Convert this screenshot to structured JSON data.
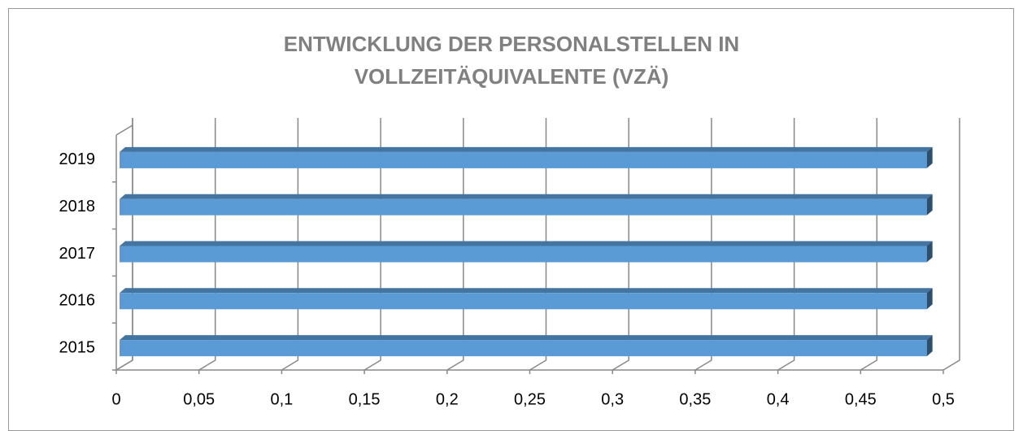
{
  "chart_data": {
    "type": "bar3d",
    "orientation": "horizontal",
    "title": "ENTWICKLUNG DER PERSONALSTELLEN IN VOLLZEITÄQUIVALENTE (VZÄ)",
    "categories": [
      "2015",
      "2016",
      "2017",
      "2018",
      "2019"
    ],
    "values": [
      0.49,
      0.49,
      0.49,
      0.49,
      0.49
    ],
    "color": "#5b9bd5",
    "xlim": [
      0,
      0.5
    ],
    "xticks": [
      0,
      {
        "value": 0.05,
        "label": "0,05"
      },
      {
        "value": 0.1,
        "label": "0,1"
      },
      {
        "value": 0.15,
        "label": "0,15"
      },
      {
        "value": 0.2,
        "label": "0,2"
      },
      {
        "value": 0.25,
        "label": "0,25"
      },
      {
        "value": 0.3,
        "label": "0,3"
      },
      {
        "value": 0.35,
        "label": "0,35"
      },
      {
        "value": 0.4,
        "label": "0,4"
      },
      {
        "value": 0.45,
        "label": "0,45"
      },
      {
        "value": 0.5,
        "label": "0,5"
      }
    ],
    "grid": true
  }
}
